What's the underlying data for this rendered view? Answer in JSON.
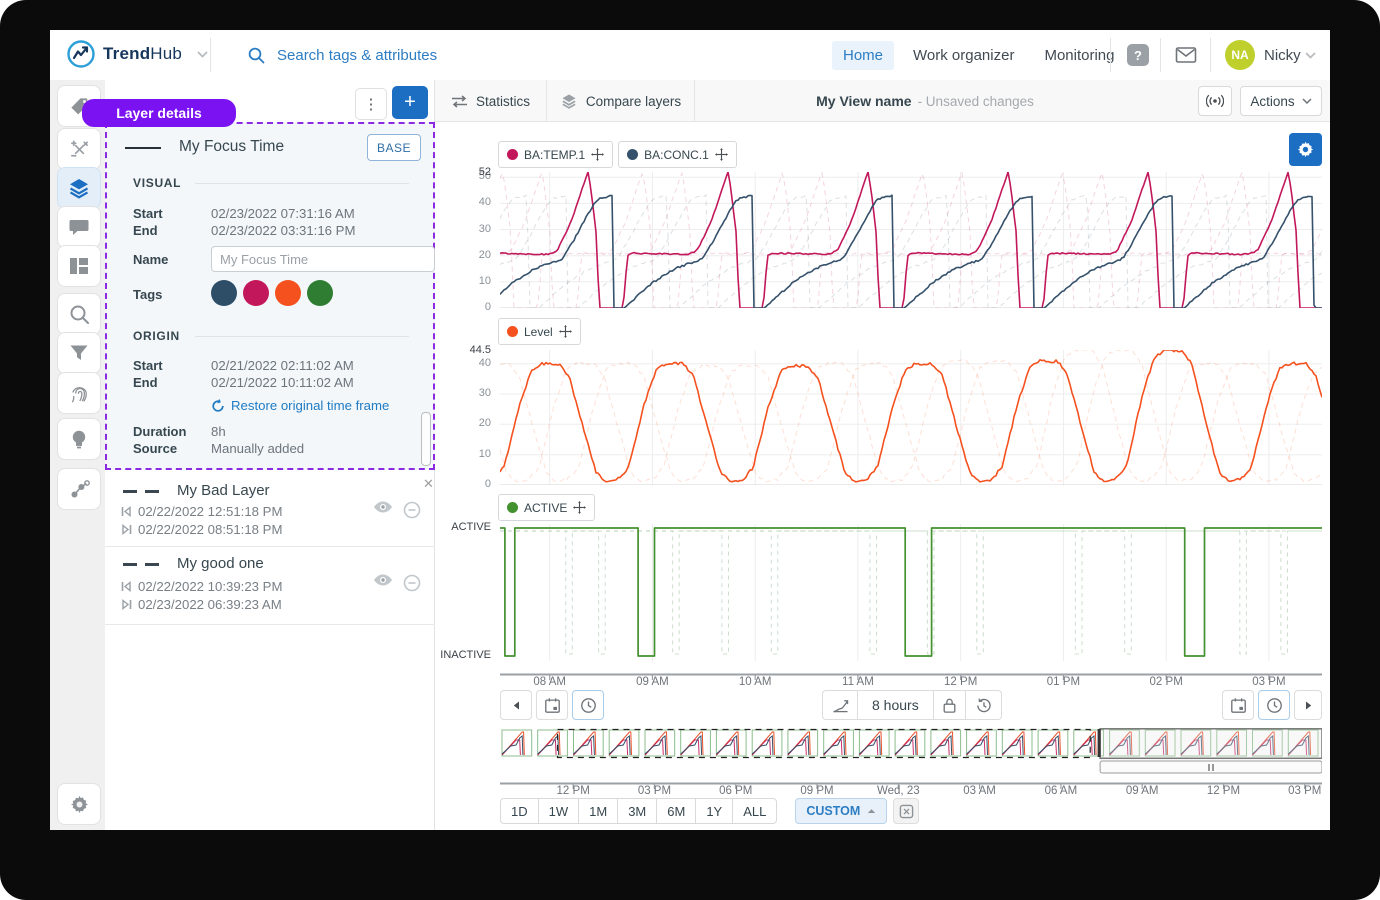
{
  "colors": {
    "accent_blue": "#1b6ec2",
    "link_blue": "#2d7dc3",
    "badge_purple": "#7a12f2",
    "magenta": "#c2185b",
    "navy": "#35516b",
    "orange": "#f4511e",
    "green": "#2e7d32",
    "avatar_green": "#bfd02c"
  },
  "header": {
    "brand_bold": "Trend",
    "brand_light": "Hub",
    "search_placeholder": "Search tags & attributes",
    "nav": [
      "Home",
      "Work organizer",
      "Monitoring"
    ],
    "active_nav": "Home",
    "user": {
      "initials": "NA",
      "name": "Nicky"
    }
  },
  "layer_panel": {
    "tooltip": "Layer details",
    "details": {
      "name": "My Focus Time",
      "badge": "BASE",
      "visual_title": "VISUAL",
      "origin_title": "ORIGIN",
      "labels": {
        "start": "Start",
        "end": "End",
        "name": "Name",
        "tags": "Tags",
        "duration": "Duration",
        "source": "Source"
      },
      "visual": {
        "start": "02/23/2022 07:31:16 AM",
        "end": "02/23/2022 03:31:16 PM"
      },
      "name_placeholder": "My Focus Time",
      "tag_colors": [
        "#2e4d66",
        "#c2185b",
        "#f4511e",
        "#2e7d32"
      ],
      "origin": {
        "start": "02/21/2022 02:11:02 AM",
        "end": "02/21/2022 10:11:02 AM"
      },
      "restore_link": "Restore original time frame",
      "duration": "8h",
      "source": "Manually added"
    },
    "layers": [
      {
        "name": "My Bad Layer",
        "start": "02/22/2022 12:51:18 PM",
        "end": "02/22/2022 08:51:18 PM"
      },
      {
        "name": "My good one",
        "start": "02/22/2022 10:39:23 PM",
        "end": "02/23/2022 06:39:23 AM"
      }
    ]
  },
  "toolbar": {
    "statistics": "Statistics",
    "compare_layers": "Compare layers",
    "view_name": "My View name",
    "unsaved": "- Unsaved changes",
    "actions": "Actions"
  },
  "timebar": {
    "duration_label": "8 hours",
    "ranges": [
      "1D",
      "1W",
      "1M",
      "3M",
      "6M",
      "1Y",
      "ALL"
    ],
    "custom_label": "CUSTOM",
    "timeline_labels": [
      "12 PM",
      "03 PM",
      "06 PM",
      "09 PM",
      "Wed, 23",
      "03 AM",
      "06 AM",
      "09 AM",
      "12 PM",
      "03 PM"
    ]
  },
  "chart_data": [
    {
      "type": "line",
      "name": "analog-trend-1",
      "x_start": "07:31 AM",
      "x_end": "03:31 PM",
      "ylim": [
        0,
        52
      ],
      "yticks": [
        0,
        10,
        20,
        30,
        40,
        50
      ],
      "ymax_label": "52",
      "x_tick_labels": [
        "08 AM",
        "09 AM",
        "10 AM",
        "11 AM",
        "12 PM",
        "01 PM",
        "02 PM",
        "03 PM"
      ],
      "cycles": 5.87,
      "phase": 0.152,
      "series": [
        {
          "name": "BA:TEMP.1",
          "color": "#c2185b",
          "noise": 0.5,
          "pattern": [
            [
              0,
              0
            ],
            [
              0.03,
              0
            ],
            [
              0.045,
              8
            ],
            [
              0.06,
              20
            ],
            [
              0.09,
              21
            ],
            [
              0.5,
              20.5
            ],
            [
              0.56,
              22
            ],
            [
              0.66,
              33
            ],
            [
              0.78,
              52
            ],
            [
              0.8,
              46
            ],
            [
              0.84,
              28
            ],
            [
              0.86,
              0
            ],
            [
              1,
              0
            ]
          ]
        },
        {
          "name": "BA:CONC.1",
          "color": "#35516b",
          "noise": 0.7,
          "pattern": [
            [
              0,
              0
            ],
            [
              0.04,
              0
            ],
            [
              0.1,
              3
            ],
            [
              0.25,
              10
            ],
            [
              0.4,
              15
            ],
            [
              0.5,
              17
            ],
            [
              0.56,
              18
            ],
            [
              0.6,
              19
            ],
            [
              0.68,
              26
            ],
            [
              0.78,
              36
            ],
            [
              0.84,
              41
            ],
            [
              0.87,
              42
            ],
            [
              0.96,
              43
            ],
            [
              0.965,
              0
            ],
            [
              1,
              0
            ]
          ]
        }
      ],
      "ghost_phases": [
        0.33,
        0.61
      ]
    },
    {
      "type": "line",
      "name": "analog-trend-2",
      "ylim": [
        0,
        44.5
      ],
      "yticks": [
        0,
        10,
        20,
        30,
        40
      ],
      "ymax_label": "44.5",
      "cycles": 6.6,
      "phase": 0.047,
      "series": [
        {
          "name": "Level",
          "color": "#f4511e",
          "noise": 1.0,
          "amps": [
            1,
            1,
            0.98,
            1,
            1.02,
            1.11,
            1,
            0.97
          ],
          "pattern": [
            [
              0,
              2
            ],
            [
              0.08,
              6
            ],
            [
              0.2,
              26
            ],
            [
              0.3,
              38
            ],
            [
              0.38,
              40
            ],
            [
              0.52,
              40
            ],
            [
              0.6,
              36
            ],
            [
              0.72,
              18
            ],
            [
              0.82,
              4
            ],
            [
              0.9,
              1
            ],
            [
              1,
              2
            ]
          ]
        }
      ],
      "ghost_phases": [
        0.4,
        0.72
      ]
    },
    {
      "type": "digital",
      "name": "digital-trend",
      "ylabels": [
        "ACTIVE",
        "INACTIVE"
      ],
      "series": [
        {
          "name": "ACTIVE",
          "color": "#43912f",
          "dips": [
            [
              0.006,
              0.018
            ],
            [
              0.168,
              0.188
            ],
            [
              0.493,
              0.525
            ],
            [
              0.833,
              0.857
            ]
          ]
        }
      ],
      "ghosts": [
        {
          "dips": [
            [
              0.08,
              0.088
            ],
            [
              0.21,
              0.218
            ],
            [
              0.33,
              0.338
            ],
            [
              0.45,
              0.458
            ],
            [
              0.58,
              0.588
            ],
            [
              0.7,
              0.708
            ],
            [
              0.9,
              0.908
            ]
          ]
        },
        {
          "dips": [
            [
              0.12,
              0.128
            ],
            [
              0.27,
              0.278
            ],
            [
              0.52,
              0.528
            ],
            [
              0.76,
              0.768
            ],
            [
              0.95,
              0.958
            ]
          ]
        }
      ]
    },
    {
      "type": "overview",
      "name": "context-overview",
      "cycles": 23,
      "selection": {
        "compare_range": [
          0.07,
          0.718
        ],
        "view_window": [
          0.73,
          1.0
        ]
      }
    }
  ]
}
